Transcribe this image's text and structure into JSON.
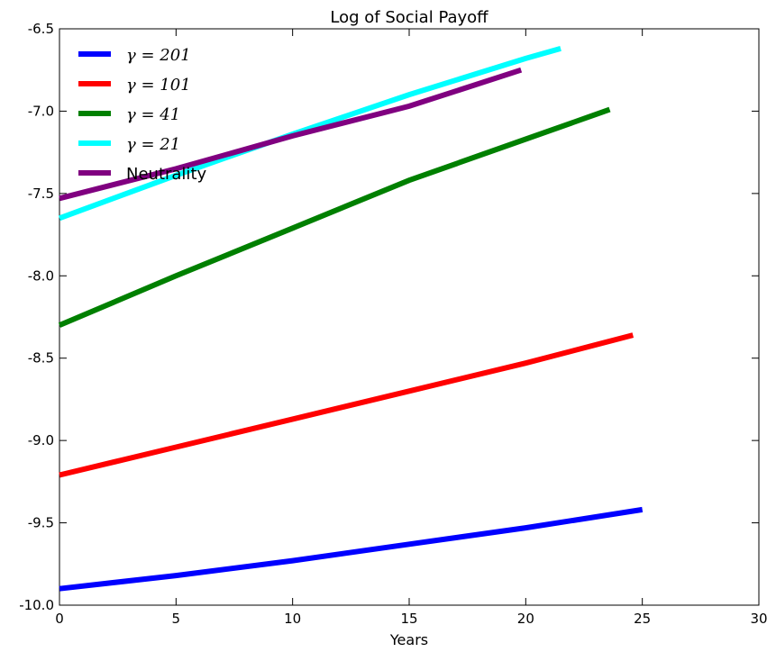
{
  "chart_data": {
    "type": "line",
    "title": "Log of Social Payoff",
    "xlabel": "Years",
    "ylabel": "",
    "xlim": [
      0,
      30
    ],
    "ylim": [
      -10.0,
      -6.5
    ],
    "xticks": [
      "0",
      "5",
      "10",
      "15",
      "20",
      "25",
      "30"
    ],
    "yticks": [
      "-10.0",
      "-9.5",
      "-9.0",
      "-8.5",
      "-8.0",
      "-7.5",
      "-7.0",
      "-6.5"
    ],
    "grid": false,
    "legend_position": "top-left",
    "series": [
      {
        "name": "γ = 201",
        "color": "#0000ff",
        "x": [
          0,
          5,
          10,
          15,
          20,
          25
        ],
        "values": [
          -9.9,
          -9.82,
          -9.73,
          -9.63,
          -9.53,
          -9.42
        ]
      },
      {
        "name": "γ = 101",
        "color": "#ff0000",
        "x": [
          0,
          5,
          10,
          15,
          20,
          24.6
        ],
        "values": [
          -9.21,
          -9.04,
          -8.87,
          -8.7,
          -8.53,
          -8.36
        ]
      },
      {
        "name": "γ = 41",
        "color": "#008000",
        "x": [
          0,
          5,
          10,
          15,
          20,
          23.6
        ],
        "values": [
          -8.3,
          -8.0,
          -7.71,
          -7.42,
          -7.17,
          -6.99
        ]
      },
      {
        "name": "γ = 21",
        "color": "#00ffff",
        "x": [
          0,
          5,
          10,
          15,
          20,
          21.5
        ],
        "values": [
          -7.65,
          -7.39,
          -7.14,
          -6.9,
          -6.68,
          -6.62
        ]
      },
      {
        "name": "Neutrality",
        "color": "#800080",
        "x": [
          0,
          5,
          10,
          15,
          19.8
        ],
        "values": [
          -7.53,
          -7.35,
          -7.15,
          -6.97,
          -6.75
        ]
      }
    ]
  }
}
